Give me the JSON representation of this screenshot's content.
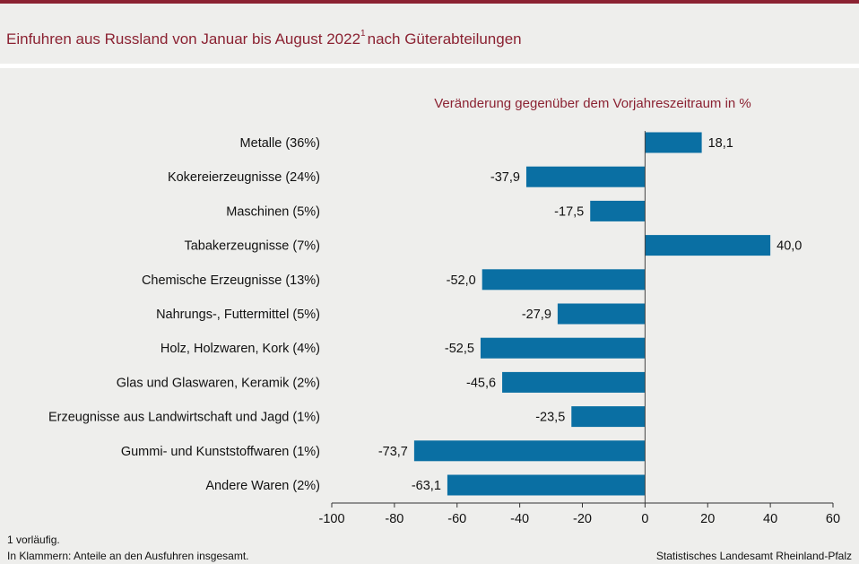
{
  "header": {
    "title": "Einfuhren aus Russland von Januar bis August 2022",
    "title_sup": "1",
    "title_suffix": "nach Güterabteilungen"
  },
  "footer": {
    "footnote_1": "1 vorläufig.",
    "footnote_2": "In Klammern: Anteile an den Ausfuhren insgesamt.",
    "source": "Statistisches Landesamt Rheinland-Pfalz"
  },
  "colors": {
    "accent": "#8b2232",
    "bar": "#0a6fa3",
    "background": "#eeeeec"
  },
  "chart_data": {
    "type": "bar",
    "orientation": "horizontal",
    "title": "Einfuhren aus Russland von Januar bis August 2022 nach Güterabteilungen",
    "axis_title": "Veränderung gegenüber dem Vorjahreszeitraum in %",
    "categories": [
      "Metalle (36%)",
      "Kokereierzeugnisse (24%)",
      "Maschinen (5%)",
      "Tabakerzeugnisse (7%)",
      "Chemische Erzeugnisse (13%)",
      "Nahrungs-, Futtermittel (5%)",
      "Holz, Holzwaren, Kork (4%)",
      "Glas und Glaswaren, Keramik (2%)",
      "Erzeugnisse aus Landwirtschaft und Jagd (1%)",
      "Gummi- und Kunststoffwaren (1%)",
      "Andere Waren (2%)"
    ],
    "values": [
      18.1,
      -37.9,
      -17.5,
      40.0,
      -52.0,
      -27.9,
      -52.5,
      -45.6,
      -23.5,
      -73.7,
      -63.1
    ],
    "value_labels": [
      "18,1",
      "-37,9",
      "-17,5",
      "40,0",
      "-52,0",
      "-27,9",
      "-52,5",
      "-45,6",
      "-23,5",
      "-73,7",
      "-63,1"
    ],
    "xlim": [
      -100,
      60
    ],
    "xticks": [
      -100,
      -80,
      -60,
      -40,
      -20,
      0,
      20,
      40,
      60
    ],
    "grid": false
  }
}
